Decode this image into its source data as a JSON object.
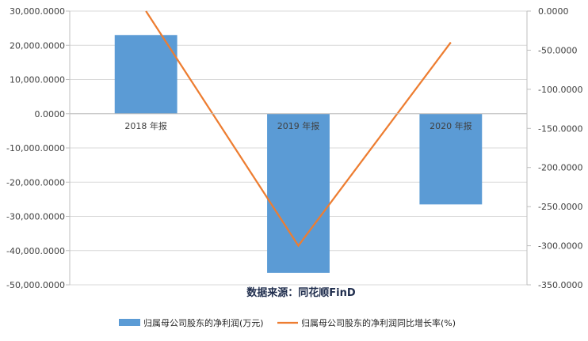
{
  "chart_data": {
    "type": "bar",
    "categories": [
      "2018 年报",
      "2019 年报",
      "2020 年报"
    ],
    "series": [
      {
        "name": "归属母公司股东的净利润(万元)",
        "type": "bar",
        "axis": "left",
        "values": [
          23000,
          -46500,
          -26500
        ],
        "color": "#5b9bd5"
      },
      {
        "name": "归属母公司股东的净利润同比增长率(%)",
        "type": "line",
        "axis": "right",
        "values": [
          0,
          -300,
          -40
        ],
        "color": "#ed7d31"
      }
    ],
    "left_axis": {
      "ylim": [
        -50000,
        30000
      ],
      "ticks": [
        30000,
        20000,
        10000,
        0,
        -10000,
        -20000,
        -30000,
        -40000,
        -50000
      ],
      "tick_labels": [
        "30,000.0000",
        "20,000.0000",
        "10,000.0000",
        "0.0000",
        "-10,000.0000",
        "-20,000.0000",
        "-30,000.0000",
        "-40,000.0000",
        "-50,000.0000"
      ]
    },
    "right_axis": {
      "ylim": [
        -350,
        0
      ],
      "ticks": [
        0,
        -50,
        -100,
        -150,
        -200,
        -250,
        -300,
        -350
      ],
      "tick_labels": [
        "0.0000",
        "-50.0000",
        "-100.0000",
        "-150.0000",
        "-200.0000",
        "-250.0000",
        "-300.0000",
        "-350.0000"
      ]
    },
    "grid": true,
    "legend_position": "bottom",
    "annotation": "数据来源：同花顺FinD"
  }
}
